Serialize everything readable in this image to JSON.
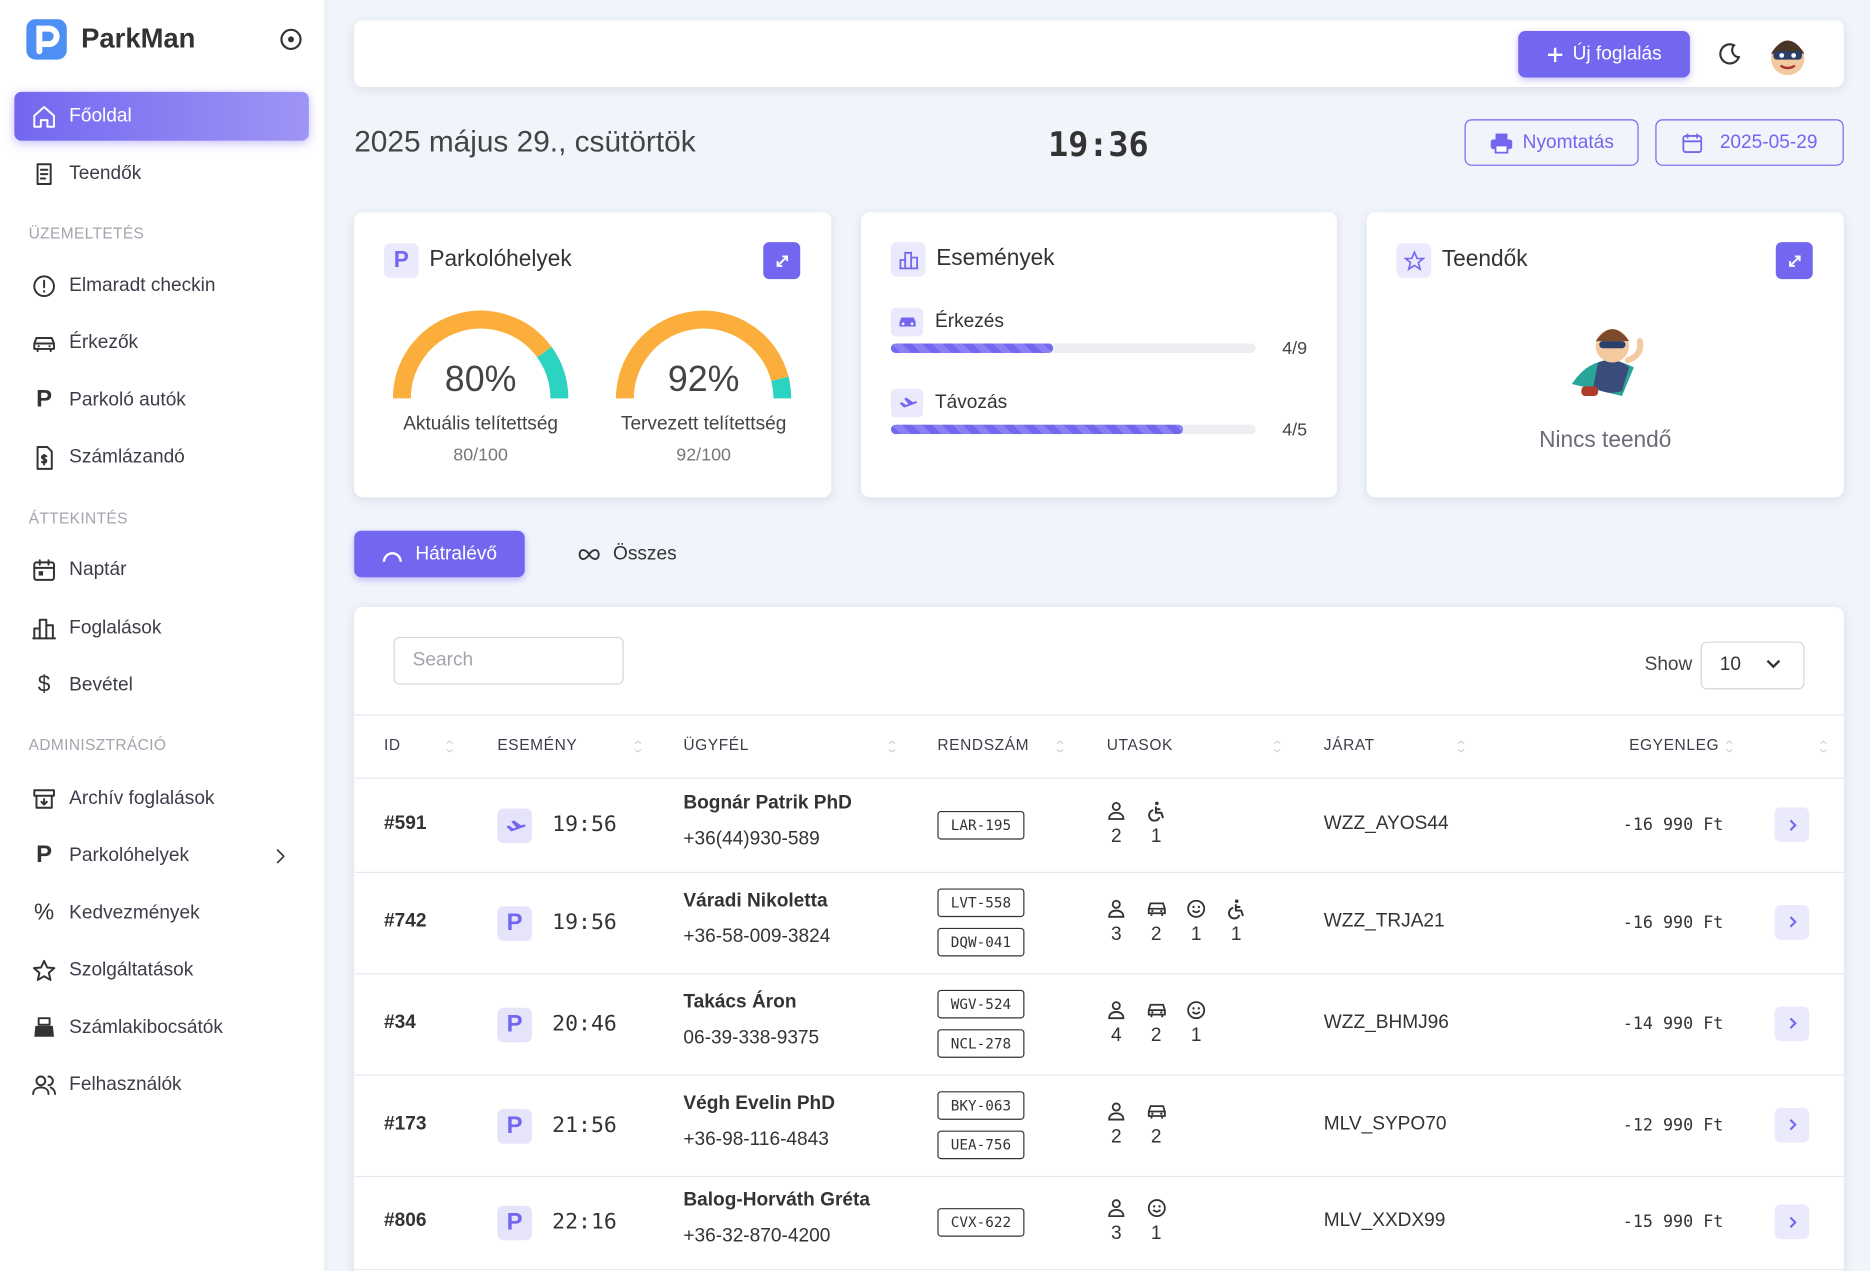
{
  "sidebar": {
    "brand": "ParkMan",
    "top_items": [
      {
        "label": "Főoldal"
      },
      {
        "label": "Teendők"
      }
    ],
    "sections": [
      {
        "heading": "ÜZEMELTETÉS",
        "items": [
          {
            "label": "Elmaradt checkin"
          },
          {
            "label": "Érkezők"
          },
          {
            "label": "Parkoló autók",
            "icon": "P"
          },
          {
            "label": "Számlázandó"
          }
        ]
      },
      {
        "heading": "ÁTTEKINTÉS",
        "items": [
          {
            "label": "Naptár"
          },
          {
            "label": "Foglalások"
          },
          {
            "label": "Bevétel",
            "icon": "$"
          }
        ]
      },
      {
        "heading": "ADMINISZTRÁCIÓ",
        "items": [
          {
            "label": "Archív foglalások"
          },
          {
            "label": "Parkolóhelyek",
            "icon": "P"
          },
          {
            "label": "Kedvezmények",
            "icon": "%"
          },
          {
            "label": "Szolgáltatások"
          },
          {
            "label": "Számlakibocsátók"
          },
          {
            "label": "Felhasználók"
          }
        ]
      }
    ]
  },
  "topbar": {
    "new_booking": "Új foglalás"
  },
  "header": {
    "date": "2025 május 29., csütörtök",
    "time": "19:36",
    "print": "Nyomtatás",
    "date_picker": "2025-05-29"
  },
  "cards": {
    "parking": {
      "icon": "P",
      "title": "Parkolóhelyek",
      "gauges": [
        {
          "value": 80,
          "label": "80%",
          "caption": "Aktuális telítettség",
          "ratio": "80/100"
        },
        {
          "value": 92,
          "label": "92%",
          "caption": "Tervezett telítettség",
          "ratio": "92/100"
        }
      ]
    },
    "events": {
      "title": "Események",
      "items": [
        {
          "label": "Érkezés",
          "done": 4,
          "total": 9,
          "ratio": "4/9"
        },
        {
          "label": "Távozás",
          "done": 4,
          "total": 5,
          "ratio": "4/5"
        }
      ]
    },
    "todos": {
      "title": "Teendők",
      "empty": "Nincs teendő"
    }
  },
  "tabs": [
    "Hátralévő",
    "Összes"
  ],
  "table": {
    "search_placeholder": "Search",
    "show_label": "Show",
    "page_size": "10",
    "columns": [
      "ID",
      "ESEMÉNY",
      "ÜGYFÉL",
      "RENDSZÁM",
      "UTASOK",
      "JÁRAT",
      "EGYENLEG"
    ],
    "rows": [
      {
        "id": "#591",
        "event_icon": null,
        "time": "19:56",
        "name": "Bognár Patrik PhD",
        "phone": "+36(44)930-589",
        "plates": [
          "LAR-195"
        ],
        "passengers": [
          2,
          null,
          null,
          1
        ],
        "flight": "WZZ_AYOS44",
        "balance": "-16 990 Ft"
      },
      {
        "id": "#742",
        "event_icon": "P",
        "time": "19:56",
        "name": "Váradi Nikoletta",
        "phone": "+36-58-009-3824",
        "plates": [
          "LVT-558",
          "DQW-041"
        ],
        "passengers": [
          3,
          2,
          1,
          1
        ],
        "flight": "WZZ_TRJA21",
        "balance": "-16 990 Ft"
      },
      {
        "id": "#34",
        "event_icon": "P",
        "time": "20:46",
        "name": "Takács Áron",
        "phone": "06-39-338-9375",
        "plates": [
          "WGV-524",
          "NCL-278"
        ],
        "passengers": [
          4,
          2,
          1,
          null
        ],
        "flight": "WZZ_BHMJ96",
        "balance": "-14 990 Ft"
      },
      {
        "id": "#173",
        "event_icon": "P",
        "time": "21:56",
        "name": "Végh Evelin PhD",
        "phone": "+36-98-116-4843",
        "plates": [
          "BKY-063",
          "UEA-756"
        ],
        "passengers": [
          2,
          2,
          null,
          null
        ],
        "flight": "MLV_SYPO70",
        "balance": "-12 990 Ft"
      },
      {
        "id": "#806",
        "event_icon": "P",
        "time": "22:16",
        "name": "Balog-Horváth Gréta",
        "phone": "+36-32-870-4200",
        "plates": [
          "CVX-622"
        ],
        "passengers": [
          3,
          null,
          1,
          null
        ],
        "flight": "MLV_XXDX99",
        "balance": "-15 990 Ft"
      }
    ]
  }
}
